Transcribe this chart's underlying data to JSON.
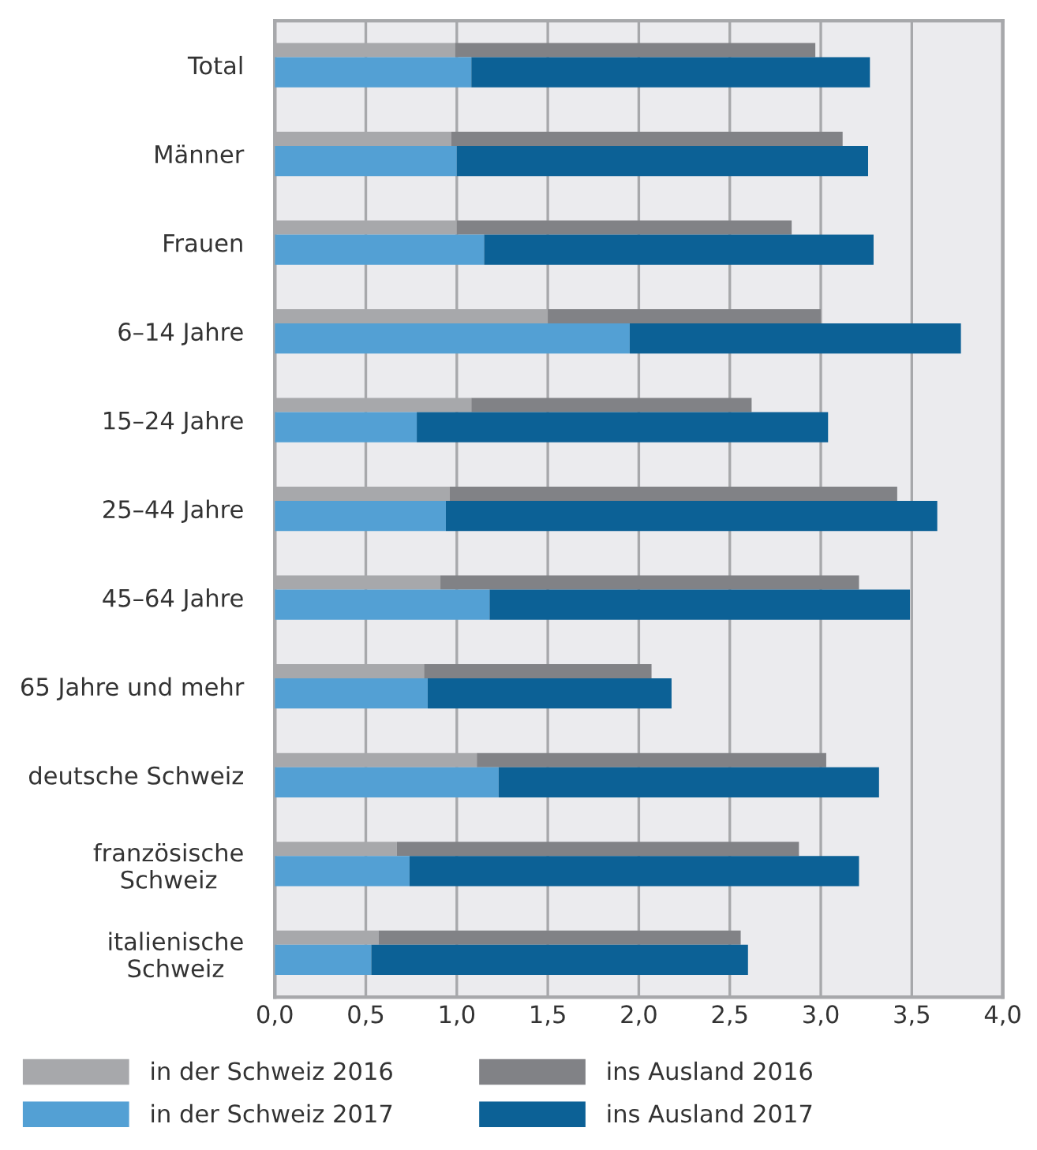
{
  "chart_data": [
    {
      "type": "bar",
      "orientation": "horizontal",
      "stacked": true,
      "categories": [
        "Total",
        "Männer",
        "Frauen",
        "6–14 Jahre",
        "15–24 Jahre",
        "25–44 Jahre",
        "45–64 Jahre",
        "65 Jahre und mehr",
        "deutsche Schweiz",
        "französische\nSchweiz",
        "italienische\nSchweiz"
      ],
      "series": [
        {
          "name": "in der Schweiz 2016",
          "color": "#a7a8ab",
          "values": [
            0.99,
            0.97,
            1.0,
            1.5,
            1.08,
            0.96,
            0.91,
            0.82,
            1.11,
            0.67,
            0.57
          ]
        },
        {
          "name": "ins Ausland 2016",
          "color": "#818286",
          "values": [
            1.98,
            2.15,
            1.84,
            1.5,
            1.54,
            2.46,
            2.3,
            1.25,
            1.92,
            2.21,
            1.99
          ]
        }
      ],
      "xlim": [
        0,
        4.0
      ],
      "xticks": [
        {
          "value": 0,
          "label": "0,0"
        },
        {
          "value": 0.5,
          "label": "0,5"
        },
        {
          "value": 1.0,
          "label": "1,0"
        },
        {
          "value": 1.5,
          "label": "1,5"
        },
        {
          "value": 2.0,
          "label": "2,0"
        },
        {
          "value": 2.5,
          "label": "2,5"
        },
        {
          "value": 3.0,
          "label": "3,0"
        },
        {
          "value": 3.5,
          "label": "3,5"
        },
        {
          "value": 4.0,
          "label": "4,0"
        }
      ],
      "grid": "x",
      "legend": "bottom"
    },
    {
      "type": "bar",
      "orientation": "horizontal",
      "stacked": true,
      "categories": [
        null,
        null,
        null,
        null,
        null,
        null,
        null,
        null,
        null,
        null,
        null
      ],
      "series": [
        {
          "name": "in der Schweiz 2017",
          "color": "#53a0d4",
          "values": [
            1.08,
            1.0,
            1.15,
            1.95,
            0.78,
            0.94,
            1.18,
            0.84,
            1.23,
            0.74,
            0.53
          ]
        },
        {
          "name": "ins Ausland 2017",
          "color": "#0c6196",
          "values": [
            2.19,
            2.26,
            2.14,
            1.82,
            2.26,
            2.7,
            2.31,
            1.34,
            2.09,
            2.47,
            2.07
          ]
        }
      ],
      "xlim": [
        0,
        4.0
      ],
      "legend": "bottom"
    }
  ]
}
